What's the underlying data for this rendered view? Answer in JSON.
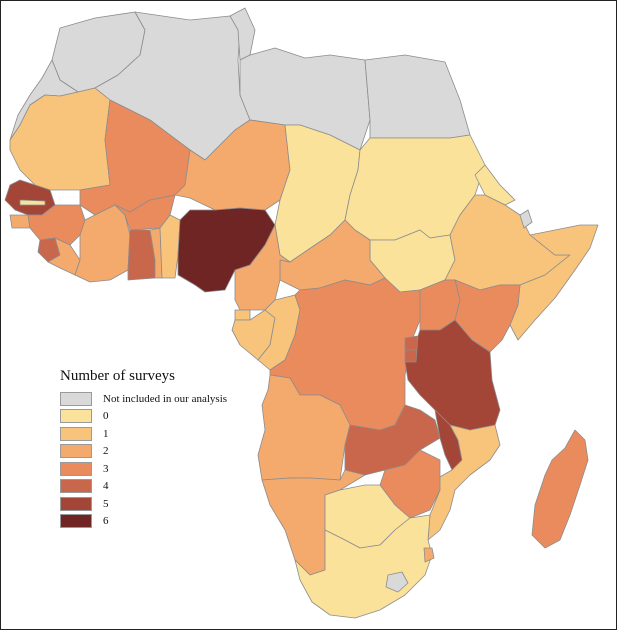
{
  "legend": {
    "title": "Number of surveys",
    "items": [
      {
        "label": "Not included in our analysis",
        "color": "#d9d9d9"
      },
      {
        "label": "0",
        "color": "#fbe29b"
      },
      {
        "label": "1",
        "color": "#f8c37b"
      },
      {
        "label": "2",
        "color": "#f4a96d"
      },
      {
        "label": "3",
        "color": "#ea8b5e"
      },
      {
        "label": "4",
        "color": "#c9674d"
      },
      {
        "label": "5",
        "color": "#a34537"
      },
      {
        "label": "6",
        "color": "#6e2524"
      }
    ]
  },
  "map": {
    "border_color": "#8c8c8c",
    "ocean_color": "#ffffff"
  }
}
